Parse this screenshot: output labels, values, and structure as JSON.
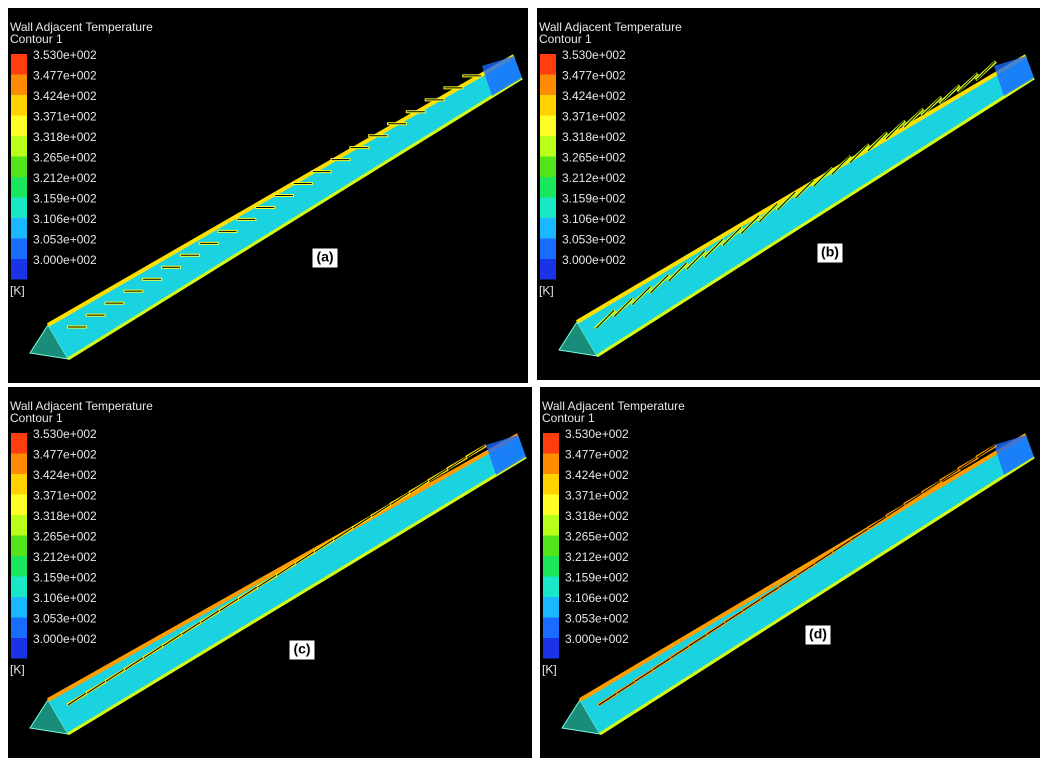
{
  "panels": [
    {
      "title": "Wall Adjacent Temperature",
      "subtitle": "Contour 1",
      "legend": [
        "3.530e+002",
        "3.477e+002",
        "3.424e+002",
        "3.371e+002",
        "3.318e+002",
        "3.265e+002",
        "3.212e+002",
        "3.159e+002",
        "3.106e+002",
        "3.053e+002",
        "3.000e+002"
      ],
      "unit": "[K]",
      "label": "(a)"
    },
    {
      "title": "Wall Adjacent Temperature",
      "subtitle": "Contour 1",
      "legend": [
        "3.530e+002",
        "3.477e+002",
        "3.424e+002",
        "3.371e+002",
        "3.318e+002",
        "3.265e+002",
        "3.212e+002",
        "3.159e+002",
        "3.106e+002",
        "3.053e+002",
        "3.000e+002"
      ],
      "unit": "[K]",
      "label": "(b)"
    },
    {
      "title": "Wall Adjacent Temperature",
      "subtitle": "Contour 1",
      "legend": [
        "3.530e+002",
        "3.477e+002",
        "3.424e+002",
        "3.371e+002",
        "3.318e+002",
        "3.265e+002",
        "3.212e+002",
        "3.159e+002",
        "3.106e+002",
        "3.053e+002",
        "3.000e+002"
      ],
      "unit": "[K]",
      "label": "(c)"
    },
    {
      "title": "Wall Adjacent Temperature",
      "subtitle": "Contour 1",
      "legend": [
        "3.530e+002",
        "3.477e+002",
        "3.424e+002",
        "3.371e+002",
        "3.318e+002",
        "3.265e+002",
        "3.212e+002",
        "3.159e+002",
        "3.106e+002",
        "3.053e+002",
        "3.000e+002"
      ],
      "unit": "[K]",
      "label": "(d)"
    }
  ]
}
